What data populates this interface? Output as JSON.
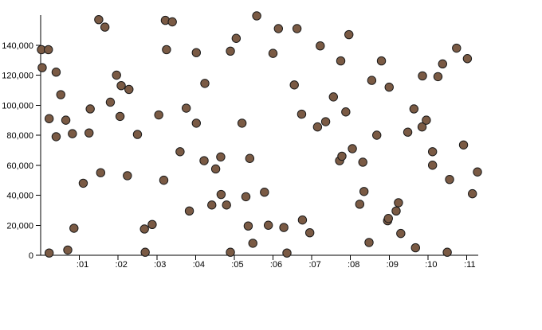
{
  "chart_data": {
    "type": "scatter",
    "title": "",
    "xlabel": "",
    "ylabel": "",
    "grid": false,
    "legend": "none",
    "x_unit": "seconds",
    "xlim": [
      0,
      11.3
    ],
    "ylim": [
      0,
      160000
    ],
    "x_ticks": [
      1,
      2,
      3,
      4,
      5,
      6,
      7,
      8,
      9,
      10,
      11
    ],
    "x_tick_labels": [
      ":01",
      ":02",
      ":03",
      ":04",
      ":05",
      ":06",
      ":07",
      ":08",
      ":09",
      ":10",
      ":11"
    ],
    "y_ticks": [
      0,
      20000,
      40000,
      60000,
      80000,
      100000,
      120000,
      140000
    ],
    "y_tick_labels": [
      "0",
      "20,000",
      "40,000",
      "60,000",
      "80,000",
      "100,000",
      "120,000",
      "140,000"
    ],
    "colors": {
      "marker": "#7a5a44",
      "marker_edge": "#1a1a1a",
      "axis": "#000000"
    },
    "points": [
      {
        "x": 0.02,
        "y": 137000
      },
      {
        "x": 0.04,
        "y": 125000
      },
      {
        "x": 0.2,
        "y": 137000
      },
      {
        "x": 0.22,
        "y": 91000
      },
      {
        "x": 0.22,
        "y": 1500
      },
      {
        "x": 0.4,
        "y": 79000
      },
      {
        "x": 0.4,
        "y": 122000
      },
      {
        "x": 0.52,
        "y": 107000
      },
      {
        "x": 0.65,
        "y": 90000
      },
      {
        "x": 0.7,
        "y": 3500
      },
      {
        "x": 0.82,
        "y": 81000
      },
      {
        "x": 0.86,
        "y": 18000
      },
      {
        "x": 1.1,
        "y": 48000
      },
      {
        "x": 1.25,
        "y": 81500
      },
      {
        "x": 1.28,
        "y": 97500
      },
      {
        "x": 1.5,
        "y": 157000
      },
      {
        "x": 1.55,
        "y": 55000
      },
      {
        "x": 1.66,
        "y": 152000
      },
      {
        "x": 1.8,
        "y": 102000
      },
      {
        "x": 1.96,
        "y": 120000
      },
      {
        "x": 2.05,
        "y": 92500
      },
      {
        "x": 2.08,
        "y": 113000
      },
      {
        "x": 2.24,
        "y": 53000
      },
      {
        "x": 2.28,
        "y": 110500
      },
      {
        "x": 2.5,
        "y": 80500
      },
      {
        "x": 2.68,
        "y": 17500
      },
      {
        "x": 2.7,
        "y": 2000
      },
      {
        "x": 2.88,
        "y": 20500
      },
      {
        "x": 3.05,
        "y": 93500
      },
      {
        "x": 3.18,
        "y": 50000
      },
      {
        "x": 3.22,
        "y": 156500
      },
      {
        "x": 3.25,
        "y": 137000
      },
      {
        "x": 3.4,
        "y": 155500
      },
      {
        "x": 3.6,
        "y": 69000
      },
      {
        "x": 3.76,
        "y": 98000
      },
      {
        "x": 3.84,
        "y": 29500
      },
      {
        "x": 4.02,
        "y": 135000
      },
      {
        "x": 4.02,
        "y": 88000
      },
      {
        "x": 4.22,
        "y": 63000
      },
      {
        "x": 4.24,
        "y": 114500
      },
      {
        "x": 4.42,
        "y": 33500
      },
      {
        "x": 4.52,
        "y": 57500
      },
      {
        "x": 4.65,
        "y": 65500
      },
      {
        "x": 4.66,
        "y": 40500
      },
      {
        "x": 4.8,
        "y": 33500
      },
      {
        "x": 4.9,
        "y": 2000
      },
      {
        "x": 4.9,
        "y": 136000
      },
      {
        "x": 5.05,
        "y": 144500
      },
      {
        "x": 5.2,
        "y": 88000
      },
      {
        "x": 5.3,
        "y": 39000
      },
      {
        "x": 5.36,
        "y": 19500
      },
      {
        "x": 5.4,
        "y": 64500
      },
      {
        "x": 5.48,
        "y": 8000
      },
      {
        "x": 5.58,
        "y": 159500
      },
      {
        "x": 5.78,
        "y": 42000
      },
      {
        "x": 5.88,
        "y": 20000
      },
      {
        "x": 6.0,
        "y": 134500
      },
      {
        "x": 6.14,
        "y": 151000
      },
      {
        "x": 6.28,
        "y": 18500
      },
      {
        "x": 6.36,
        "y": 1500
      },
      {
        "x": 6.55,
        "y": 113500
      },
      {
        "x": 6.62,
        "y": 151000
      },
      {
        "x": 6.74,
        "y": 94000
      },
      {
        "x": 6.76,
        "y": 23500
      },
      {
        "x": 6.95,
        "y": 15000
      },
      {
        "x": 7.15,
        "y": 85500
      },
      {
        "x": 7.22,
        "y": 139500
      },
      {
        "x": 7.36,
        "y": 89000
      },
      {
        "x": 7.56,
        "y": 105500
      },
      {
        "x": 7.72,
        "y": 63000
      },
      {
        "x": 7.78,
        "y": 66000
      },
      {
        "x": 7.75,
        "y": 129500
      },
      {
        "x": 7.88,
        "y": 95500
      },
      {
        "x": 7.96,
        "y": 147000
      },
      {
        "x": 8.05,
        "y": 71000
      },
      {
        "x": 8.24,
        "y": 34000
      },
      {
        "x": 8.32,
        "y": 62000
      },
      {
        "x": 8.35,
        "y": 42500
      },
      {
        "x": 8.48,
        "y": 8500
      },
      {
        "x": 8.55,
        "y": 116500
      },
      {
        "x": 8.68,
        "y": 80000
      },
      {
        "x": 8.8,
        "y": 129500
      },
      {
        "x": 8.96,
        "y": 23000
      },
      {
        "x": 8.98,
        "y": 24500
      },
      {
        "x": 9.0,
        "y": 112000
      },
      {
        "x": 9.18,
        "y": 29500
      },
      {
        "x": 9.24,
        "y": 35000
      },
      {
        "x": 9.3,
        "y": 14500
      },
      {
        "x": 9.48,
        "y": 82000
      },
      {
        "x": 9.64,
        "y": 97500
      },
      {
        "x": 9.68,
        "y": 5000
      },
      {
        "x": 9.85,
        "y": 85500
      },
      {
        "x": 9.86,
        "y": 119500
      },
      {
        "x": 9.96,
        "y": 90000
      },
      {
        "x": 10.12,
        "y": 69000
      },
      {
        "x": 10.12,
        "y": 60000
      },
      {
        "x": 10.26,
        "y": 119000
      },
      {
        "x": 10.38,
        "y": 127500
      },
      {
        "x": 10.5,
        "y": 2000
      },
      {
        "x": 10.56,
        "y": 50500
      },
      {
        "x": 10.74,
        "y": 138000
      },
      {
        "x": 10.92,
        "y": 73500
      },
      {
        "x": 11.02,
        "y": 131000
      },
      {
        "x": 11.15,
        "y": 41000
      },
      {
        "x": 11.28,
        "y": 55500
      }
    ]
  }
}
